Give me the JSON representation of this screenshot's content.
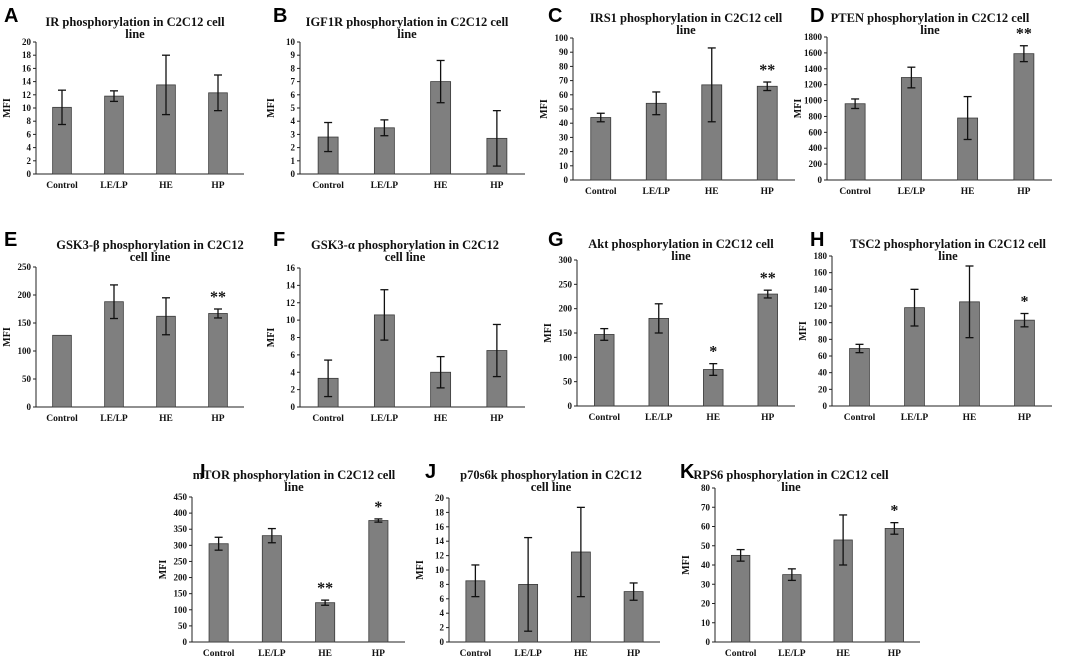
{
  "chart_data": [
    {
      "type": "bar",
      "letter": "A",
      "title_lines": [
        "IR  phosphorylation in C2C12  cell",
        "line"
      ],
      "ylabel": "MFI",
      "categories": [
        "Control",
        "LE/LP",
        "HE",
        "HP"
      ],
      "values": [
        10.1,
        11.8,
        13.5,
        12.3
      ],
      "errors": [
        2.6,
        0.8,
        4.5,
        2.7
      ],
      "sig": [
        "",
        "",
        "",
        ""
      ],
      "ylim": [
        0,
        20
      ],
      "step": 2,
      "yticks": [
        "0",
        "2",
        "4",
        "6",
        "8",
        "10",
        "12",
        "14",
        "16",
        "18",
        "20"
      ]
    },
    {
      "type": "bar",
      "letter": "B",
      "title_lines": [
        "IGF1R phosphorylation in C2C12 cell",
        "line"
      ],
      "ylabel": "MFI",
      "categories": [
        "Control",
        "LE/LP",
        "HE",
        "HP"
      ],
      "values": [
        2.8,
        3.5,
        7.0,
        2.7
      ],
      "errors": [
        1.1,
        0.6,
        1.6,
        2.1
      ],
      "sig": [
        "",
        "",
        "",
        ""
      ],
      "ylim": [
        0,
        10
      ],
      "step": 1,
      "yticks": [
        "0",
        "1",
        "2",
        "3",
        "4",
        "5",
        "6",
        "7",
        "8",
        "9",
        "10"
      ]
    },
    {
      "type": "bar",
      "letter": "C",
      "title_lines": [
        "IRS1 phosphorylation in C2C12  cell",
        "line"
      ],
      "ylabel": "MFI",
      "categories": [
        "Control",
        "LE/LP",
        "HE",
        "HP"
      ],
      "values": [
        44,
        54,
        67,
        66
      ],
      "errors": [
        3,
        8,
        26,
        3
      ],
      "sig": [
        "",
        "",
        "",
        "**"
      ],
      "ylim": [
        0,
        100
      ],
      "step": 10,
      "yticks": [
        "0",
        "10",
        "20",
        "30",
        "40",
        "50",
        "60",
        "70",
        "80",
        "90",
        "100"
      ]
    },
    {
      "type": "bar",
      "letter": "D",
      "title_lines": [
        "PTEN  phosphorylation in C2C12  cell",
        "line"
      ],
      "ylabel": "MFI",
      "categories": [
        "Control",
        "LE/LP",
        "HE",
        "HP"
      ],
      "values": [
        960,
        1290,
        780,
        1590
      ],
      "errors": [
        60,
        130,
        270,
        100
      ],
      "sig": [
        "",
        "",
        "",
        "**"
      ],
      "ylim": [
        0,
        1800
      ],
      "step": 200,
      "yticks": [
        "0",
        "200",
        "400",
        "600",
        "800",
        "1000",
        "1200",
        "1400",
        "1600",
        "1800"
      ]
    },
    {
      "type": "bar",
      "letter": "E",
      "title_lines": [
        "GSK3-β phosphorylation in C2C12",
        "cell line"
      ],
      "ylabel": "MFI",
      "categories": [
        "Control",
        "LE/LP",
        "HE",
        "HP"
      ],
      "values": [
        128,
        188,
        162,
        167
      ],
      "errors": [
        0,
        30,
        33,
        8
      ],
      "sig": [
        "",
        "",
        "",
        "**"
      ],
      "ylim": [
        0,
        250
      ],
      "step": 50,
      "yticks": [
        "0",
        "50",
        "100",
        "150",
        "200",
        "250"
      ]
    },
    {
      "type": "bar",
      "letter": "F",
      "title_lines": [
        "GSK3-α phosphorylation in C2C12",
        "cell line"
      ],
      "ylabel": "MFI",
      "categories": [
        "Control",
        "LE/LP",
        "HE",
        "HP"
      ],
      "values": [
        3.3,
        10.6,
        4.0,
        6.5
      ],
      "errors": [
        2.1,
        2.9,
        1.8,
        3.0
      ],
      "sig": [
        "",
        "",
        "",
        ""
      ],
      "ylim": [
        0,
        16
      ],
      "step": 2,
      "yticks": [
        "0",
        "2",
        "4",
        "6",
        "8",
        "10",
        "12",
        "14",
        "16"
      ]
    },
    {
      "type": "bar",
      "letter": "G",
      "title_lines": [
        "Akt  phosphorylation in C2C12  cell",
        "line"
      ],
      "ylabel": "MFI",
      "categories": [
        "Control",
        "LE/LP",
        "HE",
        "HP"
      ],
      "values": [
        147,
        180,
        75,
        230
      ],
      "errors": [
        12,
        30,
        12,
        8
      ],
      "sig": [
        "",
        "",
        "*",
        "**"
      ],
      "ylim": [
        0,
        300
      ],
      "step": 50,
      "yticks": [
        "0",
        "50",
        "100",
        "150",
        "200",
        "250",
        "300"
      ]
    },
    {
      "type": "bar",
      "letter": "H",
      "title_lines": [
        "TSC2  phosphorylation in C2C12  cell",
        "line"
      ],
      "ylabel": "MFI",
      "categories": [
        "Control",
        "LE/LP",
        "HE",
        "HP"
      ],
      "values": [
        69,
        118,
        125,
        103
      ],
      "errors": [
        5,
        22,
        43,
        8
      ],
      "sig": [
        "",
        "",
        "",
        "*"
      ],
      "ylim": [
        0,
        180
      ],
      "step": 20,
      "yticks": [
        "0",
        "20",
        "40",
        "60",
        "80",
        "100",
        "120",
        "140",
        "160",
        "180"
      ]
    },
    {
      "type": "bar",
      "letter": "I",
      "title_lines": [
        "mTOR phosphorylation in C2C12  cell",
        "line"
      ],
      "ylabel": "MFI",
      "categories": [
        "Control",
        "LE/LP",
        "HE",
        "HP"
      ],
      "values": [
        305,
        330,
        122,
        377
      ],
      "errors": [
        20,
        22,
        8,
        5
      ],
      "sig": [
        "",
        "",
        "**",
        "*"
      ],
      "ylim": [
        0,
        450
      ],
      "step": 50,
      "yticks": [
        "0",
        "50",
        "100",
        "150",
        "200",
        "250",
        "300",
        "350",
        "400",
        "450"
      ]
    },
    {
      "type": "bar",
      "letter": "J",
      "title_lines": [
        "p70s6k  phosphorylation in C2C12",
        "cell line"
      ],
      "ylabel": "MFI",
      "categories": [
        "Control",
        "LE/LP",
        "HE",
        "HP"
      ],
      "values": [
        8.5,
        8.0,
        12.5,
        7.0
      ],
      "errors": [
        2.2,
        6.5,
        6.2,
        1.2
      ],
      "sig": [
        "",
        "",
        "",
        ""
      ],
      "ylim": [
        0,
        20
      ],
      "step": 2,
      "yticks": [
        "0",
        "2",
        "4",
        "6",
        "8",
        "10",
        "12",
        "14",
        "16",
        "18",
        "20"
      ]
    },
    {
      "type": "bar",
      "letter": "K",
      "title_lines": [
        "RPS6  phosphorylation in C2C12 cell",
        "line"
      ],
      "ylabel": "MFI",
      "categories": [
        "Control",
        "LE/LP",
        "HE",
        "HP"
      ],
      "values": [
        45,
        35,
        53,
        59
      ],
      "errors": [
        3,
        3,
        13,
        3
      ],
      "sig": [
        "",
        "",
        "",
        "*"
      ],
      "ylim": [
        0,
        80
      ],
      "step": 10,
      "yticks": [
        "0",
        "10",
        "20",
        "30",
        "40",
        "50",
        "60",
        "70",
        "80"
      ]
    }
  ],
  "colors": {
    "bar": "#7f7f7f",
    "bar_edge": "#3a3a3a",
    "axis": "#222222",
    "text": "#111111",
    "error": "#111111"
  }
}
